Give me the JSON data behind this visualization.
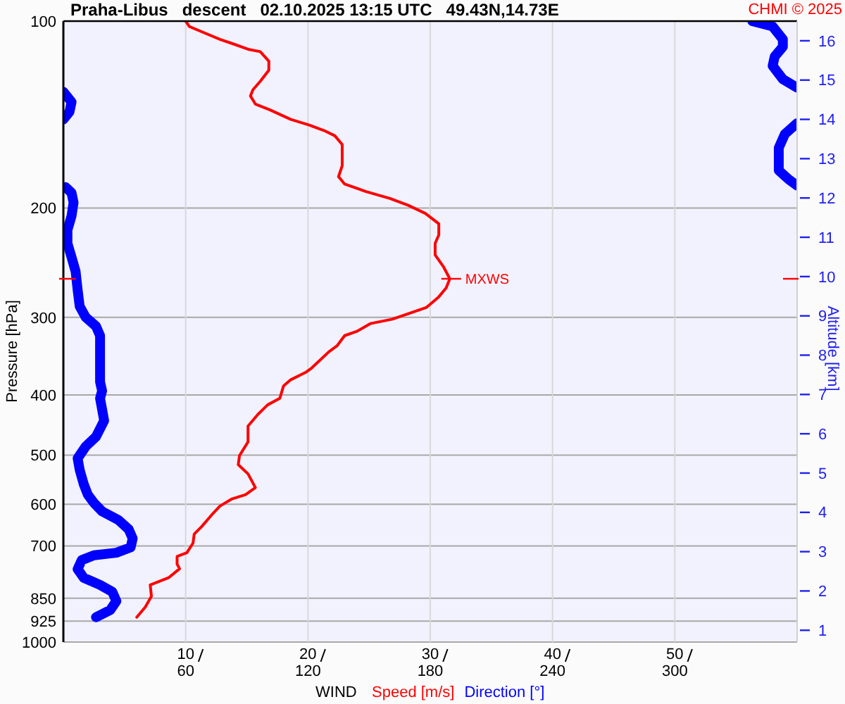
{
  "chart_data": {
    "type": "line",
    "orientation": "horizontal",
    "title": "Praha-Libus   descent   02.10.2025 13:15 UTC   49.43N,14.73E",
    "xlabel": "WIND",
    "ylabel": "Pressure [hPa]",
    "y2label": "Altitude [km]",
    "annotations": [
      "CHMI © 2025",
      {
        "text": "MXWS",
        "x": 31.6,
        "y": 260
      }
    ],
    "xlim": [
      0,
      60
    ],
    "xticks": [
      10,
      20,
      30,
      40,
      50
    ],
    "x2lim": [
      0,
      360
    ],
    "x2ticks": [
      60,
      120,
      180,
      240,
      300
    ],
    "ylim": [
      1000,
      100
    ],
    "yticks": [
      100,
      200,
      300,
      400,
      500,
      600,
      700,
      850,
      925,
      1000
    ],
    "y2lim": [
      0.7,
      16.5
    ],
    "y2ticks": [
      1,
      2,
      3,
      4,
      5,
      6,
      7,
      8,
      9,
      10,
      11,
      12,
      13,
      14,
      15,
      16
    ],
    "log": "y",
    "grid": true,
    "legend": "bottom",
    "series": [
      {
        "name": "Speed [m/s]",
        "color": "#ff0000",
        "x": [
          100,
          102,
          104,
          107,
          109,
          111,
          112,
          116,
          120,
          125,
          129,
          132,
          136,
          139,
          144,
          147,
          150,
          153,
          158,
          171,
          178,
          183,
          188,
          193,
          198,
          204,
          212,
          221,
          228,
          238,
          249,
          260,
          269,
          278,
          289,
          296,
          302,
          307,
          316,
          321,
          333,
          341,
          362,
          368,
          378,
          387,
          405,
          415,
          430,
          449,
          476,
          501,
          518,
          536,
          564,
          579,
          588,
          604,
          625,
          652,
          670,
          693,
          718,
          728,
          749,
          762,
          788,
          809,
          844,
          878,
          912
        ],
        "values": [
          10.0,
          10.3,
          11.3,
          12.8,
          14.0,
          15.1,
          16.1,
          16.8,
          16.8,
          16.1,
          15.5,
          15.3,
          15.7,
          16.9,
          18.6,
          20.1,
          21.3,
          22.2,
          22.8,
          22.8,
          22.5,
          23.0,
          24.7,
          26.7,
          28.2,
          29.6,
          30.7,
          30.7,
          30.4,
          30.4,
          31.1,
          31.6,
          31.3,
          30.7,
          29.7,
          28.2,
          26.9,
          25.1,
          24.0,
          23.0,
          22.4,
          21.7,
          20.3,
          19.8,
          18.6,
          18.0,
          17.7,
          16.7,
          15.9,
          15.1,
          15.1,
          14.4,
          14.3,
          15.1,
          15.7,
          14.9,
          13.8,
          12.8,
          12.1,
          11.3,
          10.7,
          10.6,
          10.1,
          9.3,
          9.3,
          9.5,
          8.6,
          7.1,
          7.2,
          6.7,
          6.0
        ]
      },
      {
        "name": "Direction [°]",
        "color": "#0000ff",
        "axis": "x2",
        "x": [
          100,
          102,
          107,
          110,
          114,
          118,
          124,
          128,
          null,
          130,
          135,
          140,
          144,
          null,
          146,
          152,
          160,
          174,
          180,
          184,
          null,
          185,
          189,
          196,
          206,
          217,
          228,
          240,
          253,
          271,
          288,
          300,
          310,
          321,
          381,
          394,
          405,
          422,
          440,
          467,
          484,
          506,
          528,
          557,
          579,
          597,
          616,
          636,
          658,
          681,
          704,
          718,
          725,
          738,
          763,
          788,
          809,
          830,
          859,
          888,
          912
        ],
        "values": [
          338,
          348,
          353,
          353,
          349,
          348,
          353,
          360,
          null,
          0,
          4,
          3,
          0,
          null,
          360,
          354,
          351,
          351,
          356,
          360,
          null,
          1,
          4,
          5,
          4,
          2,
          2,
          4,
          6,
          7,
          8,
          11,
          16,
          18,
          18,
          19,
          18,
          19,
          20,
          16,
          11,
          7,
          8,
          10,
          12,
          15,
          19,
          27,
          32,
          34,
          33,
          26,
          15,
          9,
          7,
          10,
          18,
          24,
          26,
          23,
          16
        ]
      }
    ]
  }
}
